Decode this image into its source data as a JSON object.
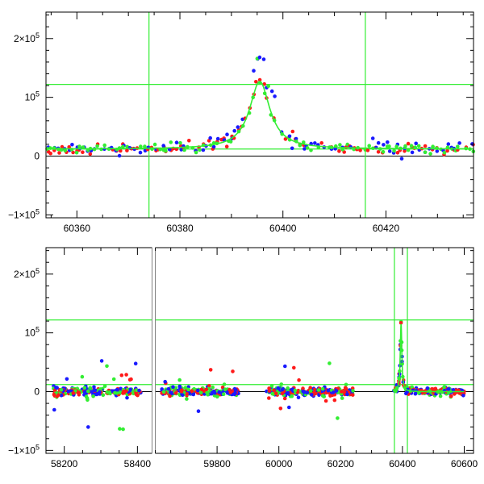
{
  "colors": {
    "blue": "#1a1aff",
    "red": "#ff1a1a",
    "green": "#33ee33",
    "axis": "#000000"
  },
  "chart_data": [
    {
      "id": "top",
      "type": "scatter",
      "xlim": [
        60354,
        60437
      ],
      "ylim": [
        -105000,
        245000
      ],
      "x_ticks": [
        60360,
        60380,
        60400,
        60420
      ],
      "x_tick_labels": [
        "60360",
        "60380",
        "60400",
        "60420"
      ],
      "y_ticks": [
        -100000,
        0,
        100000,
        200000
      ],
      "y_tick_labels": [
        {
          "base": "−1×10",
          "exp": "5"
        },
        {
          "base": "0",
          "exp": ""
        },
        {
          "base": "10",
          "exp": "5"
        },
        {
          "base": "2×10",
          "exp": "5"
        }
      ],
      "hlines": [
        12000,
        122000
      ],
      "vlines": [
        60374,
        60416
      ],
      "peak": {
        "t0": 60395.5,
        "A": 115000,
        "tau": 2.4,
        "base": 12000
      }
    },
    {
      "id": "bottom",
      "type": "scatter",
      "xlim_segments": [
        [
          58150,
          58440
        ],
        [
          59600,
          60630
        ]
      ],
      "ylim": [
        -105000,
        245000
      ],
      "x_ticks": [
        58200,
        58400,
        59800,
        60000,
        60200,
        60400,
        60600
      ],
      "x_tick_labels": [
        "58200",
        "58400",
        "59800",
        "60000",
        "60200",
        "60400",
        "60600"
      ],
      "y_ticks": [
        -100000,
        0,
        100000,
        200000
      ],
      "y_tick_labels": [
        {
          "base": "−1×10",
          "exp": "5"
        },
        {
          "base": "0",
          "exp": ""
        },
        {
          "base": "10",
          "exp": "5"
        },
        {
          "base": "2×10",
          "exp": "5"
        }
      ],
      "hlines": [
        12000,
        122000
      ],
      "vlines": [
        60374,
        60416
      ],
      "data_ranges": [
        [
          58170,
          58410
        ],
        [
          59620,
          59870
        ],
        [
          59960,
          60240
        ],
        [
          60370,
          60600
        ]
      ],
      "peak": {
        "t0": 60395.5,
        "A": 115000,
        "tau": 3.0,
        "base": 0
      }
    }
  ]
}
